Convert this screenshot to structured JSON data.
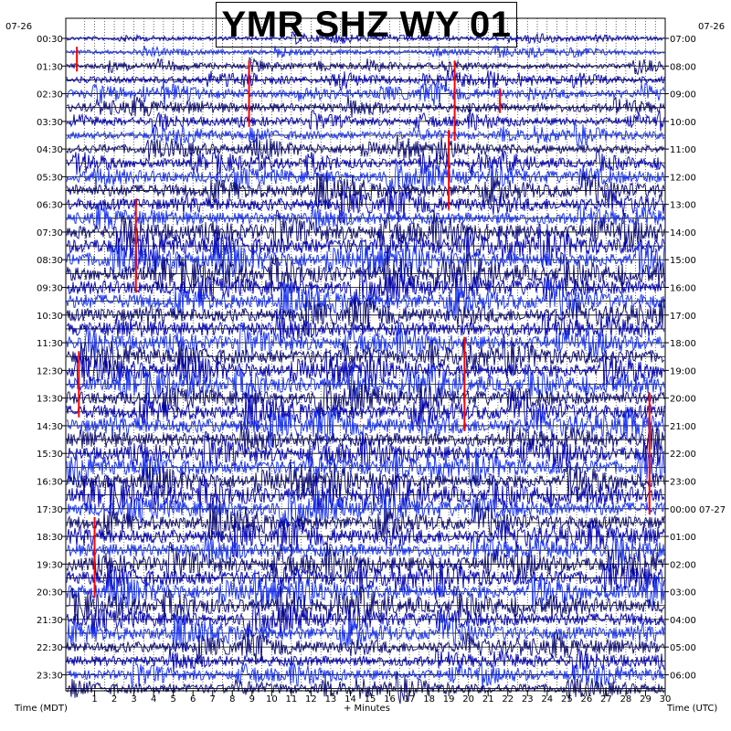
{
  "chart_data": {
    "type": "line",
    "title": "YMR SHZ WY 01",
    "left_date": "07-26",
    "right_date": "07-26",
    "left_axis_label": "Time (MDT)",
    "right_axis_label": "Time (UTC)",
    "x_axis_label": "+ Minutes",
    "x_ticks": [
      "1",
      "2",
      "3",
      "4",
      "5",
      "6",
      "7",
      "8",
      "9",
      "10",
      "11",
      "12",
      "13",
      "14",
      "15",
      "16",
      "17",
      "18",
      "19",
      "20",
      "21",
      "22",
      "23",
      "24",
      "25",
      "26",
      "27",
      "28",
      "29",
      "30"
    ],
    "left_hour_labels": [
      "00:30",
      "01:30",
      "02:30",
      "03:30",
      "04:30",
      "05:30",
      "06:30",
      "07:30",
      "08:30",
      "09:30",
      "10:30",
      "11:30",
      "12:30",
      "13:30",
      "14:30",
      "15:30",
      "16:30",
      "17:30",
      "18:30",
      "19:30",
      "20:30",
      "21:30",
      "22:30",
      "23:30"
    ],
    "right_hour_labels": [
      "07:00",
      "08:00",
      "09:00",
      "10:00",
      "11:00",
      "12:00",
      "13:00",
      "14:00",
      "15:00",
      "16:00",
      "17:00",
      "18:00",
      "19:00",
      "20:00",
      "21:00",
      "22:00",
      "23:00",
      "00:00 07-27",
      "01:00",
      "02:00",
      "03:00",
      "04:00",
      "05:00",
      "06:00"
    ],
    "traces_per_hour": 2,
    "xlim": [
      0,
      30
    ],
    "trace_activity": [
      0.12,
      0.18,
      0.25,
      0.35,
      0.5,
      0.55,
      0.4,
      0.42,
      0.55,
      0.5,
      0.75,
      0.85,
      0.8,
      0.75,
      0.95,
      1.0,
      1.0,
      1.0,
      0.95,
      1.0,
      0.9,
      0.95,
      0.85,
      0.9,
      0.95,
      0.9,
      0.9,
      0.95,
      0.95,
      0.9,
      0.95,
      0.9,
      0.95,
      1.0,
      0.95,
      0.9,
      0.9,
      0.9,
      0.95,
      0.95,
      0.95,
      0.9,
      0.85,
      0.85,
      0.7,
      0.65,
      0.6,
      0.55
    ],
    "colors": {
      "trace_cycle": [
        "#0000b0",
        "#1530f0",
        "#0a0a70"
      ],
      "event_marker": "#ff0000",
      "grid": "#000000"
    },
    "event_markers": [
      {
        "minute": 0.1,
        "trace_start": 1,
        "trace_end": 2
      },
      {
        "minute": 8.85,
        "trace_start": 2,
        "trace_end": 6
      },
      {
        "minute": 19.3,
        "trace_start": 2,
        "trace_end": 7
      },
      {
        "minute": 21.6,
        "trace_start": 4,
        "trace_end": 5
      },
      {
        "minute": 19.0,
        "trace_start": 7,
        "trace_end": 12
      },
      {
        "minute": 3.1,
        "trace_start": 12,
        "trace_end": 18
      },
      {
        "minute": 0.2,
        "trace_start": 23,
        "trace_end": 27
      },
      {
        "minute": 19.8,
        "trace_start": 22,
        "trace_end": 28
      },
      {
        "minute": 29.2,
        "trace_start": 26,
        "trace_end": 34
      },
      {
        "minute": 1.0,
        "trace_start": 35,
        "trace_end": 40
      }
    ]
  }
}
